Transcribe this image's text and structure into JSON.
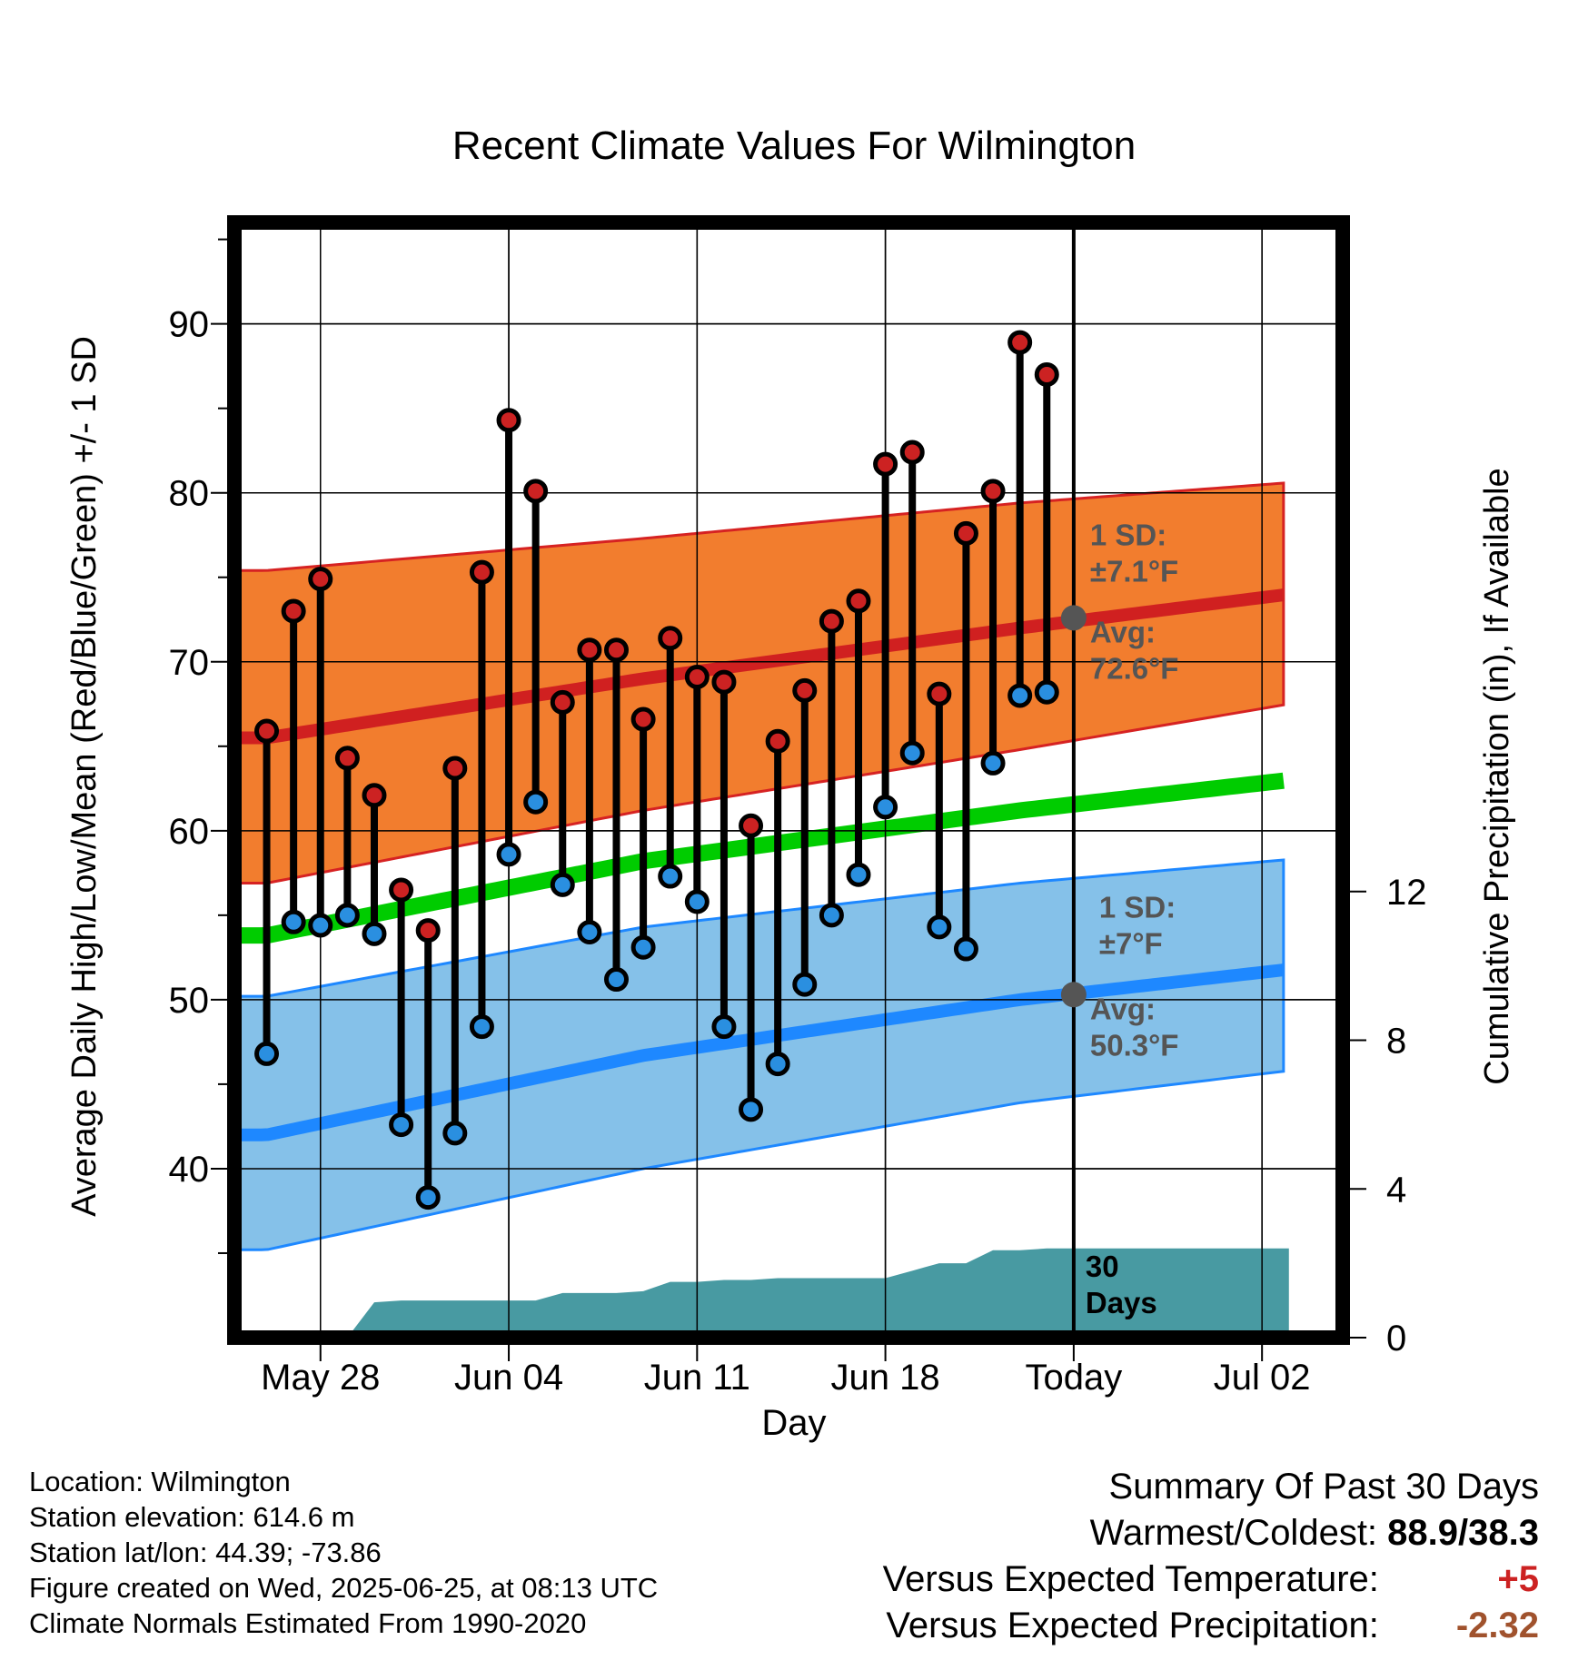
{
  "chart_data": {
    "type": "line",
    "title": "Recent Climate Values For Wilmington",
    "xlabel": "Day",
    "ylabel": "Average Daily High/Low/Mean (Red/Blue/Green) +/- 1 SD",
    "y2label": "Cumulative Precipitation (in), If Available",
    "ylim": [
      30,
      96
    ],
    "y2lim": [
      0,
      30
    ],
    "xlim": [
      -3.2,
      38
    ],
    "yticks": [
      40,
      50,
      60,
      70,
      80,
      90
    ],
    "y2ticks": [
      0,
      4,
      8,
      12
    ],
    "xticks": [
      {
        "day": 0,
        "label": "May 28"
      },
      {
        "day": 7,
        "label": "Jun 04"
      },
      {
        "day": 14,
        "label": "Jun 11"
      },
      {
        "day": 21,
        "label": "Jun 18"
      },
      {
        "day": 28,
        "label": "Today"
      },
      {
        "day": 35,
        "label": "Jul 02"
      }
    ],
    "today_day": 28,
    "grid": true,
    "series": [
      {
        "name": "Red",
        "kind": "daily-high",
        "color": "#cc2222",
        "days": [
          -2,
          -1,
          0,
          1,
          2,
          3,
          4,
          5,
          6,
          7,
          8,
          9,
          10,
          11,
          12,
          13,
          14,
          15,
          16,
          17,
          18,
          19,
          20,
          21,
          22,
          23,
          24,
          25,
          26,
          27
        ],
        "values": [
          65.9,
          73.0,
          74.9,
          64.3,
          62.1,
          56.5,
          54.1,
          63.7,
          75.3,
          84.3,
          80.1,
          67.6,
          70.7,
          70.7,
          66.6,
          71.4,
          69.1,
          68.8,
          60.3,
          65.3,
          68.3,
          72.4,
          73.6,
          81.7,
          82.4,
          68.1,
          77.6,
          80.1,
          88.9,
          87.0
        ]
      },
      {
        "name": "Blue",
        "kind": "daily-low",
        "color": "#2a8fe0",
        "days": [
          -2,
          -1,
          0,
          1,
          2,
          3,
          4,
          5,
          6,
          7,
          8,
          9,
          10,
          11,
          12,
          13,
          14,
          15,
          16,
          17,
          18,
          19,
          20,
          21,
          22,
          23,
          24,
          25,
          26,
          27
        ],
        "values": [
          46.8,
          54.6,
          54.4,
          55.0,
          53.9,
          42.6,
          38.3,
          42.1,
          48.4,
          58.6,
          61.7,
          56.8,
          54.0,
          51.2,
          53.1,
          57.3,
          55.8,
          48.4,
          43.5,
          46.2,
          50.9,
          55.0,
          57.4,
          61.4,
          64.6,
          54.3,
          53.0,
          64.0,
          68.0,
          68.2
        ]
      }
    ],
    "normals": {
      "days": [
        -2,
        12,
        26,
        36
      ],
      "avg_high": [
        65.5,
        69.0,
        72.0,
        74.0
      ],
      "avg_high_plus_sd": [
        75.4,
        77.3,
        79.4,
        80.6
      ],
      "avg_high_minus_sd": [
        56.9,
        61.2,
        64.8,
        67.5
      ],
      "avg_mean": [
        53.8,
        58.2,
        61.2,
        63.0
      ],
      "avg_low": [
        42.0,
        46.7,
        50.0,
        51.8
      ],
      "avg_low_plus_sd": [
        50.2,
        54.3,
        56.9,
        58.3
      ],
      "avg_low_minus_sd": [
        35.2,
        40.0,
        43.9,
        45.8
      ]
    },
    "precipitation": {
      "name": "Cumulative Precipitation",
      "color": "#489aa2",
      "days": [
        1,
        2,
        3,
        4,
        5,
        6,
        7,
        8,
        9,
        10,
        11,
        12,
        13,
        14,
        15,
        16,
        17,
        18,
        19,
        20,
        21,
        22,
        23,
        24,
        25,
        26,
        27,
        28,
        36
      ],
      "values": [
        0.0,
        0.95,
        1.0,
        1.0,
        1.0,
        1.0,
        1.0,
        1.0,
        1.2,
        1.2,
        1.2,
        1.25,
        1.5,
        1.5,
        1.55,
        1.55,
        1.6,
        1.6,
        1.6,
        1.6,
        1.6,
        1.8,
        2.0,
        2.0,
        2.35,
        2.35,
        2.4,
        2.4,
        2.4
      ]
    },
    "annotations": {
      "high_sd": "1 SD:",
      "high_sd_value": "±7.1°F",
      "high_avg": "Avg:",
      "high_avg_value": "72.6°F",
      "high_avg_point": 72.6,
      "low_sd": "1 SD:",
      "low_sd_value": "±7°F",
      "low_avg": "Avg:",
      "low_avg_value": "50.3°F",
      "low_avg_point": 50.3,
      "days_count": "30",
      "days_word": "Days"
    }
  },
  "info": {
    "location": "Location: Wilmington",
    "elevation": "Station elevation: 614.6 m",
    "latlon": "Station lat/lon: 44.39; -73.86",
    "created": "Figure created on Wed, 2025-06-25, at 08:13 UTC",
    "normals": "Climate Normals Estimated From 1990-2020"
  },
  "summary": {
    "heading": "Summary Of Past 30 Days",
    "warmest_label": "Warmest/Coldest:",
    "warmest_value": "88.9/38.3",
    "temp_label": "Versus Expected Temperature:",
    "temp_value": "+5",
    "temp_color": "#cc2222",
    "precip_label": "Versus Expected Precipitation:",
    "precip_value": "-2.32",
    "precip_color": "#a0522d"
  }
}
